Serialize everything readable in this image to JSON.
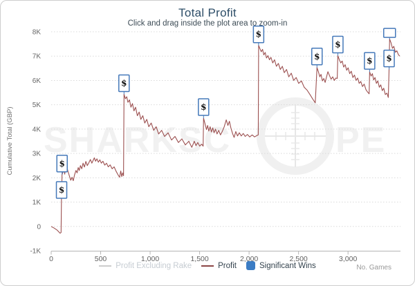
{
  "chart_data": {
    "type": "line",
    "title": "Total Profit",
    "subtitle": "Click and drag inside the plot area to zoom-in",
    "xlabel": "No. Games",
    "ylabel": "Cumulative Total (GBP)",
    "y_units": "GBP thousands (K)",
    "xlim": [
      0,
      3530
    ],
    "ylim_k": [
      -1,
      8
    ],
    "grid": "horizontal-dotted",
    "legend_position": "bottom-center",
    "x_ticks": [
      {
        "value": 0,
        "label": "0"
      },
      {
        "value": 500,
        "label": "500"
      },
      {
        "value": 1000,
        "label": "1,000"
      },
      {
        "value": 1500,
        "label": "1,500"
      },
      {
        "value": 2000,
        "label": "2,000"
      },
      {
        "value": 2500,
        "label": "2,500"
      },
      {
        "value": 3000,
        "label": "3,000"
      }
    ],
    "y_ticks": [
      {
        "value_k": 8,
        "label": "8K"
      },
      {
        "value_k": 7,
        "label": "7K"
      },
      {
        "value_k": 6,
        "label": "6K"
      },
      {
        "value_k": 5,
        "label": "5K"
      },
      {
        "value_k": 4,
        "label": "4K"
      },
      {
        "value_k": 3,
        "label": "3K"
      },
      {
        "value_k": 2,
        "label": "2K"
      },
      {
        "value_k": 1,
        "label": "1K"
      },
      {
        "value_k": 0,
        "label": "0"
      },
      {
        "value_k": -1,
        "label": "-1K"
      }
    ],
    "legend": [
      {
        "label": "Profit Excluding Rake",
        "type": "line",
        "color": "#cccccc",
        "text_color": "#c6ccd2",
        "disabled": true
      },
      {
        "label": "Profit",
        "type": "line",
        "color": "#8b4545",
        "text_color": "#33424d",
        "disabled": false
      },
      {
        "label": "Significant Wins",
        "type": "square",
        "color": "#3b7cc4",
        "text_color": "#33424d",
        "disabled": false
      }
    ],
    "series": [
      {
        "name": "Profit",
        "color": "#9b4f4f",
        "points_games_vs_k": [
          [
            0,
            0
          ],
          [
            30,
            -0.07
          ],
          [
            60,
            -0.15
          ],
          [
            90,
            -0.28
          ],
          [
            100,
            -0.25
          ],
          [
            103,
            0.7
          ],
          [
            105,
            1.5
          ],
          [
            108,
            1.85
          ],
          [
            110,
            2.13
          ],
          [
            118,
            2.22
          ],
          [
            124,
            2.45
          ],
          [
            131,
            2.3
          ],
          [
            137,
            2.15
          ],
          [
            144,
            2.4
          ],
          [
            152,
            2.27
          ],
          [
            159,
            2.46
          ],
          [
            167,
            2.3
          ],
          [
            176,
            2.18
          ],
          [
            187,
            2.03
          ],
          [
            198,
            1.9
          ],
          [
            211,
            2.02
          ],
          [
            223,
            1.88
          ],
          [
            236,
            2.12
          ],
          [
            250,
            2.3
          ],
          [
            262,
            2.2
          ],
          [
            273,
            2.42
          ],
          [
            284,
            2.3
          ],
          [
            296,
            2.5
          ],
          [
            309,
            2.37
          ],
          [
            322,
            2.6
          ],
          [
            336,
            2.44
          ],
          [
            350,
            2.67
          ],
          [
            365,
            2.5
          ],
          [
            381,
            2.62
          ],
          [
            396,
            2.75
          ],
          [
            411,
            2.6
          ],
          [
            426,
            2.73
          ],
          [
            436,
            2.82
          ],
          [
            449,
            2.68
          ],
          [
            462,
            2.78
          ],
          [
            477,
            2.64
          ],
          [
            492,
            2.74
          ],
          [
            507,
            2.6
          ],
          [
            523,
            2.68
          ],
          [
            541,
            2.52
          ],
          [
            559,
            2.6
          ],
          [
            577,
            2.45
          ],
          [
            596,
            2.53
          ],
          [
            616,
            2.37
          ],
          [
            636,
            2.45
          ],
          [
            656,
            2.27
          ],
          [
            673,
            2.14
          ],
          [
            691,
            2.02
          ],
          [
            703,
            2.28
          ],
          [
            713,
            2.05
          ],
          [
            723,
            2.2
          ],
          [
            731,
            2.08
          ],
          [
            736,
            5.43
          ],
          [
            750,
            5.25
          ],
          [
            763,
            5.33
          ],
          [
            776,
            5.1
          ],
          [
            791,
            5.2
          ],
          [
            806,
            4.9
          ],
          [
            821,
            5.05
          ],
          [
            837,
            4.75
          ],
          [
            853,
            4.9
          ],
          [
            871,
            4.55
          ],
          [
            889,
            4.7
          ],
          [
            906,
            4.4
          ],
          [
            926,
            4.55
          ],
          [
            946,
            4.25
          ],
          [
            966,
            4.4
          ],
          [
            986,
            4.1
          ],
          [
            1011,
            4.25
          ],
          [
            1036,
            3.95
          ],
          [
            1061,
            4.1
          ],
          [
            1086,
            3.8
          ],
          [
            1116,
            3.95
          ],
          [
            1146,
            3.7
          ],
          [
            1181,
            3.85
          ],
          [
            1216,
            3.55
          ],
          [
            1251,
            3.7
          ],
          [
            1286,
            3.45
          ],
          [
            1321,
            3.6
          ],
          [
            1356,
            3.35
          ],
          [
            1391,
            3.5
          ],
          [
            1421,
            3.25
          ],
          [
            1446,
            3.5
          ],
          [
            1463,
            3.32
          ],
          [
            1481,
            3.45
          ],
          [
            1501,
            3.3
          ],
          [
            1521,
            3.38
          ],
          [
            1536,
            3.3
          ],
          [
            1540,
            4.45
          ],
          [
            1556,
            4.2
          ],
          [
            1569,
            3.98
          ],
          [
            1581,
            4.15
          ],
          [
            1593,
            3.92
          ],
          [
            1606,
            4.1
          ],
          [
            1619,
            3.88
          ],
          [
            1633,
            4.05
          ],
          [
            1646,
            3.85
          ],
          [
            1661,
            4.0
          ],
          [
            1676,
            3.8
          ],
          [
            1693,
            3.95
          ],
          [
            1711,
            3.76
          ],
          [
            1729,
            3.9
          ],
          [
            1749,
            4.1
          ],
          [
            1769,
            4.38
          ],
          [
            1786,
            4.15
          ],
          [
            1801,
            4.32
          ],
          [
            1816,
            4.05
          ],
          [
            1833,
            3.82
          ],
          [
            1849,
            3.66
          ],
          [
            1866,
            3.9
          ],
          [
            1883,
            3.72
          ],
          [
            1901,
            3.85
          ],
          [
            1921,
            3.72
          ],
          [
            1941,
            3.82
          ],
          [
            1961,
            3.7
          ],
          [
            1983,
            3.78
          ],
          [
            2006,
            3.68
          ],
          [
            2031,
            3.76
          ],
          [
            2056,
            3.68
          ],
          [
            2081,
            3.74
          ],
          [
            2093,
            3.76
          ],
          [
            2096,
            7.44
          ],
          [
            2110,
            7.3
          ],
          [
            2123,
            7.18
          ],
          [
            2136,
            7.28
          ],
          [
            2149,
            7.05
          ],
          [
            2163,
            7.15
          ],
          [
            2176,
            6.92
          ],
          [
            2191,
            7.02
          ],
          [
            2206,
            6.85
          ],
          [
            2221,
            6.95
          ],
          [
            2239,
            6.72
          ],
          [
            2257,
            6.85
          ],
          [
            2276,
            6.58
          ],
          [
            2296,
            6.7
          ],
          [
            2316,
            6.45
          ],
          [
            2336,
            6.58
          ],
          [
            2356,
            6.32
          ],
          [
            2379,
            6.45
          ],
          [
            2401,
            6.15
          ],
          [
            2426,
            6.3
          ],
          [
            2451,
            6.0
          ],
          [
            2476,
            6.12
          ],
          [
            2501,
            5.88
          ],
          [
            2529,
            5.98
          ],
          [
            2557,
            5.72
          ],
          [
            2586,
            5.6
          ],
          [
            2616,
            5.42
          ],
          [
            2646,
            5.22
          ],
          [
            2669,
            5.08
          ],
          [
            2686,
            6.53
          ],
          [
            2701,
            6.35
          ],
          [
            2715,
            6.15
          ],
          [
            2727,
            6.25
          ],
          [
            2741,
            5.98
          ],
          [
            2755,
            6.08
          ],
          [
            2769,
            5.92
          ],
          [
            2783,
            6.15
          ],
          [
            2797,
            6.36
          ],
          [
            2813,
            6.2
          ],
          [
            2829,
            6.05
          ],
          [
            2845,
            6.15
          ],
          [
            2861,
            6.0
          ],
          [
            2877,
            6.1
          ],
          [
            2891,
            6.08
          ],
          [
            2897,
            7.02
          ],
          [
            2912,
            6.85
          ],
          [
            2927,
            6.72
          ],
          [
            2941,
            6.8
          ],
          [
            2956,
            6.55
          ],
          [
            2971,
            6.65
          ],
          [
            2986,
            6.42
          ],
          [
            3001,
            6.52
          ],
          [
            3017,
            6.28
          ],
          [
            3033,
            6.38
          ],
          [
            3049,
            6.12
          ],
          [
            3065,
            6.22
          ],
          [
            3081,
            6.0
          ],
          [
            3097,
            6.1
          ],
          [
            3113,
            5.88
          ],
          [
            3129,
            5.96
          ],
          [
            3146,
            5.75
          ],
          [
            3163,
            5.85
          ],
          [
            3181,
            5.62
          ],
          [
            3199,
            5.52
          ],
          [
            3213,
            5.45
          ],
          [
            3218,
            6.35
          ],
          [
            3233,
            6.18
          ],
          [
            3246,
            6.28
          ],
          [
            3259,
            6.02
          ],
          [
            3273,
            6.12
          ],
          [
            3287,
            5.88
          ],
          [
            3301,
            5.98
          ],
          [
            3316,
            5.72
          ],
          [
            3331,
            5.82
          ],
          [
            3346,
            5.58
          ],
          [
            3361,
            5.68
          ],
          [
            3377,
            5.42
          ],
          [
            3393,
            5.48
          ],
          [
            3407,
            5.3
          ],
          [
            3415,
            6.45
          ],
          [
            3420,
            7.7
          ],
          [
            3434,
            7.55
          ],
          [
            3449,
            7.32
          ],
          [
            3463,
            7.4
          ],
          [
            3479,
            7.16
          ],
          [
            3493,
            7.22
          ],
          [
            3509,
            7.06
          ],
          [
            3522,
            7.0
          ]
        ]
      }
    ],
    "hidden_series": [
      {
        "name": "Profit Excluding Rake",
        "color": "#cccccc"
      }
    ],
    "significant_wins": {
      "symbol": "$",
      "box_border_color": "#4478b9",
      "markers": [
        {
          "games": 105,
          "profit_k": 1.5,
          "box": "on-point"
        },
        {
          "games": 110,
          "profit_k": 2.13,
          "box": "above"
        },
        {
          "games": 736,
          "profit_k": 5.43,
          "box": "above"
        },
        {
          "games": 1540,
          "profit_k": 4.45,
          "box": "above"
        },
        {
          "games": 2096,
          "profit_k": 7.44,
          "box": "above"
        },
        {
          "games": 2686,
          "profit_k": 6.53,
          "box": "above"
        },
        {
          "games": 2897,
          "profit_k": 7.02,
          "box": "above"
        },
        {
          "games": 3218,
          "profit_k": 6.35,
          "box": "above"
        },
        {
          "games": 3415,
          "profit_k": 6.45,
          "box": "above"
        },
        {
          "games": 3420,
          "profit_k": 7.7,
          "box": "clipped"
        }
      ]
    },
    "watermark": {
      "left": "SHARKSC",
      "right": "PE",
      "emblem": "scope-reticle"
    }
  }
}
